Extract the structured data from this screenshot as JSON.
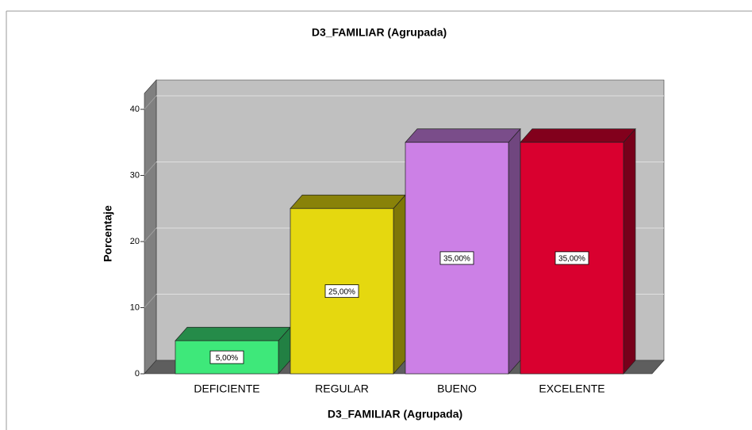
{
  "chart_data": {
    "type": "bar3d",
    "title": "D3_FAMILIAR (Agrupada)",
    "x_label": "D3_FAMILIAR (Agrupada)",
    "y_label": "Porcentaje",
    "categories": [
      "DEFICIENTE",
      "REGULAR",
      "BUENO",
      "EXCELENTE"
    ],
    "values": [
      5,
      25,
      35,
      35
    ],
    "value_labels": [
      "5,00%",
      "25,00%",
      "35,00%",
      "35,00%"
    ],
    "colors": [
      "#3ee87a",
      "#e5d80f",
      "#cc80e6",
      "#d9002f"
    ],
    "ylim": [
      0,
      42.4
    ],
    "yticks": [
      0,
      10,
      20,
      30,
      40
    ],
    "grid": true
  }
}
